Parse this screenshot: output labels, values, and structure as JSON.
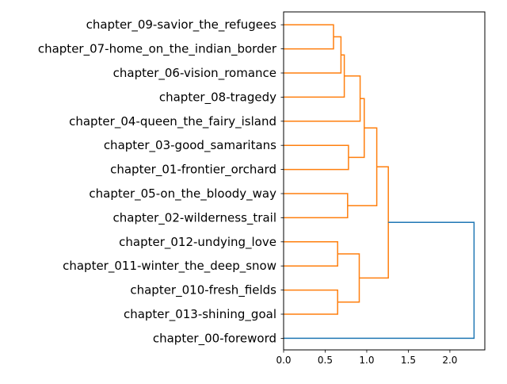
{
  "chart_data": {
    "type": "dendrogram",
    "orientation": "left",
    "title": "",
    "xlabel": "",
    "ylabel": "",
    "xlim": [
      0,
      2.42
    ],
    "xticks": [
      0.0,
      0.5,
      1.0,
      1.5,
      2.0
    ],
    "xtick_labels": [
      "0.0",
      "0.5",
      "1.0",
      "1.5",
      "2.0"
    ],
    "grid": false,
    "leaves": [
      "chapter_09-savior_the_refugees",
      "chapter_07-home_on_the_indian_border",
      "chapter_06-vision_romance",
      "chapter_08-tragedy",
      "chapter_04-queen_the_fairy_island",
      "chapter_03-good_samaritans",
      "chapter_01-frontier_orchard",
      "chapter_05-on_the_bloody_way",
      "chapter_02-wilderness_trail",
      "chapter_012-undying_love",
      "chapter_011-winter_the_deep_snow",
      "chapter_010-fresh_fields",
      "chapter_013-shining_goal",
      "chapter_00-foreword"
    ],
    "colors": {
      "cluster": "#ff7f0e",
      "root": "#1f77b4"
    },
    "merges": [
      {
        "id": "n1",
        "a": "L0",
        "b": "L1",
        "height": 0.6,
        "color": "cluster"
      },
      {
        "id": "n2",
        "a": "n1",
        "b": "L2",
        "height": 0.69,
        "color": "cluster"
      },
      {
        "id": "n3",
        "a": "n2",
        "b": "L3",
        "height": 0.73,
        "color": "cluster"
      },
      {
        "id": "n4",
        "a": "n3",
        "b": "L4",
        "height": 0.92,
        "color": "cluster"
      },
      {
        "id": "n5",
        "a": "L5",
        "b": "L6",
        "height": 0.78,
        "color": "cluster"
      },
      {
        "id": "n6",
        "a": "n4",
        "b": "n5",
        "height": 0.97,
        "color": "cluster"
      },
      {
        "id": "n7",
        "a": "L7",
        "b": "L8",
        "height": 0.77,
        "color": "cluster"
      },
      {
        "id": "n8",
        "a": "n6",
        "b": "n7",
        "height": 1.12,
        "color": "cluster"
      },
      {
        "id": "n9",
        "a": "L9",
        "b": "L10",
        "height": 0.65,
        "color": "cluster"
      },
      {
        "id": "n10",
        "a": "L11",
        "b": "L12",
        "height": 0.65,
        "color": "cluster"
      },
      {
        "id": "n11",
        "a": "n9",
        "b": "n10",
        "height": 0.91,
        "color": "cluster"
      },
      {
        "id": "n12",
        "a": "n8",
        "b": "n11",
        "height": 1.26,
        "color": "cluster"
      },
      {
        "id": "n13",
        "a": "n12",
        "b": "L13",
        "height": 2.29,
        "color": "root"
      }
    ]
  }
}
